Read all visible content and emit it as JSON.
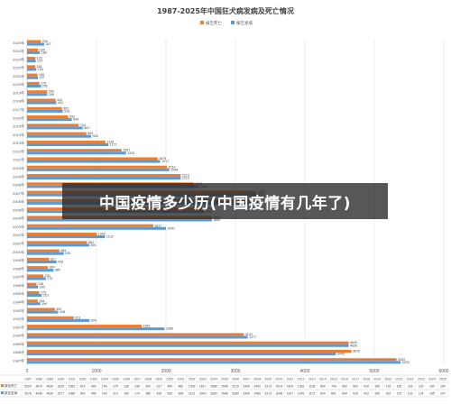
{
  "chart_data": {
    "type": "bar",
    "orientation": "horizontal",
    "title": "1987-2025年中国狂犬病发病及死亡情况",
    "legend_position": "top-center",
    "grid": true,
    "xlim": [
      0,
      6000
    ],
    "x_ticks": [
      0,
      1000,
      2000,
      3000,
      4000,
      5000,
      6000
    ],
    "colors": {
      "死亡": "#ed7d31",
      "发病": "#5b9bd5"
    },
    "categories": [
      "1987",
      "1988",
      "1989",
      "1990",
      "1991",
      "1992",
      "1993",
      "1994",
      "1995",
      "1996",
      "1997",
      "1998",
      "1999",
      "2000",
      "2001",
      "2002",
      "2003",
      "2004",
      "2005",
      "2006",
      "2007",
      "2008",
      "2009",
      "2010",
      "2011",
      "2012",
      "2013",
      "2014",
      "2015",
      "2016",
      "2017",
      "2018",
      "2019",
      "2020",
      "2021",
      "2022",
      "2023",
      "2024",
      "2025"
    ],
    "series": [
      {
        "name": "报告死亡",
        "values": [
          5320,
          4670,
          4630,
          3120,
          1651,
          673,
          400,
          154,
          176,
          136,
          235,
          300,
          317,
          465,
          862,
          1003,
          1817,
          2658,
          2545,
          3215,
          3300,
          2400,
          2213,
          2014,
          1879,
          1361,
          1128,
          854,
          744,
          592,
          502,
          410,
          290,
          176,
          150,
          118,
          120,
          160,
          200
        ]
      },
      {
        "name": "报告发病",
        "values": [
          5378,
          4446,
          4630,
          3177,
          1980,
          900,
          448,
          190,
          210,
          160,
          270,
          380,
          426,
          530,
          894,
          1122,
          2000,
          2660,
          2546,
          3280,
          3300,
          2466,
          2213,
          2048,
          1917,
          1425,
          1172,
          924,
          801,
          644,
          516,
          422,
          290,
          202,
          157,
          133,
          124,
          185,
          247
        ]
      }
    ]
  },
  "overlay_caption": "中国疫情多少历(中国疫情有几年了)"
}
